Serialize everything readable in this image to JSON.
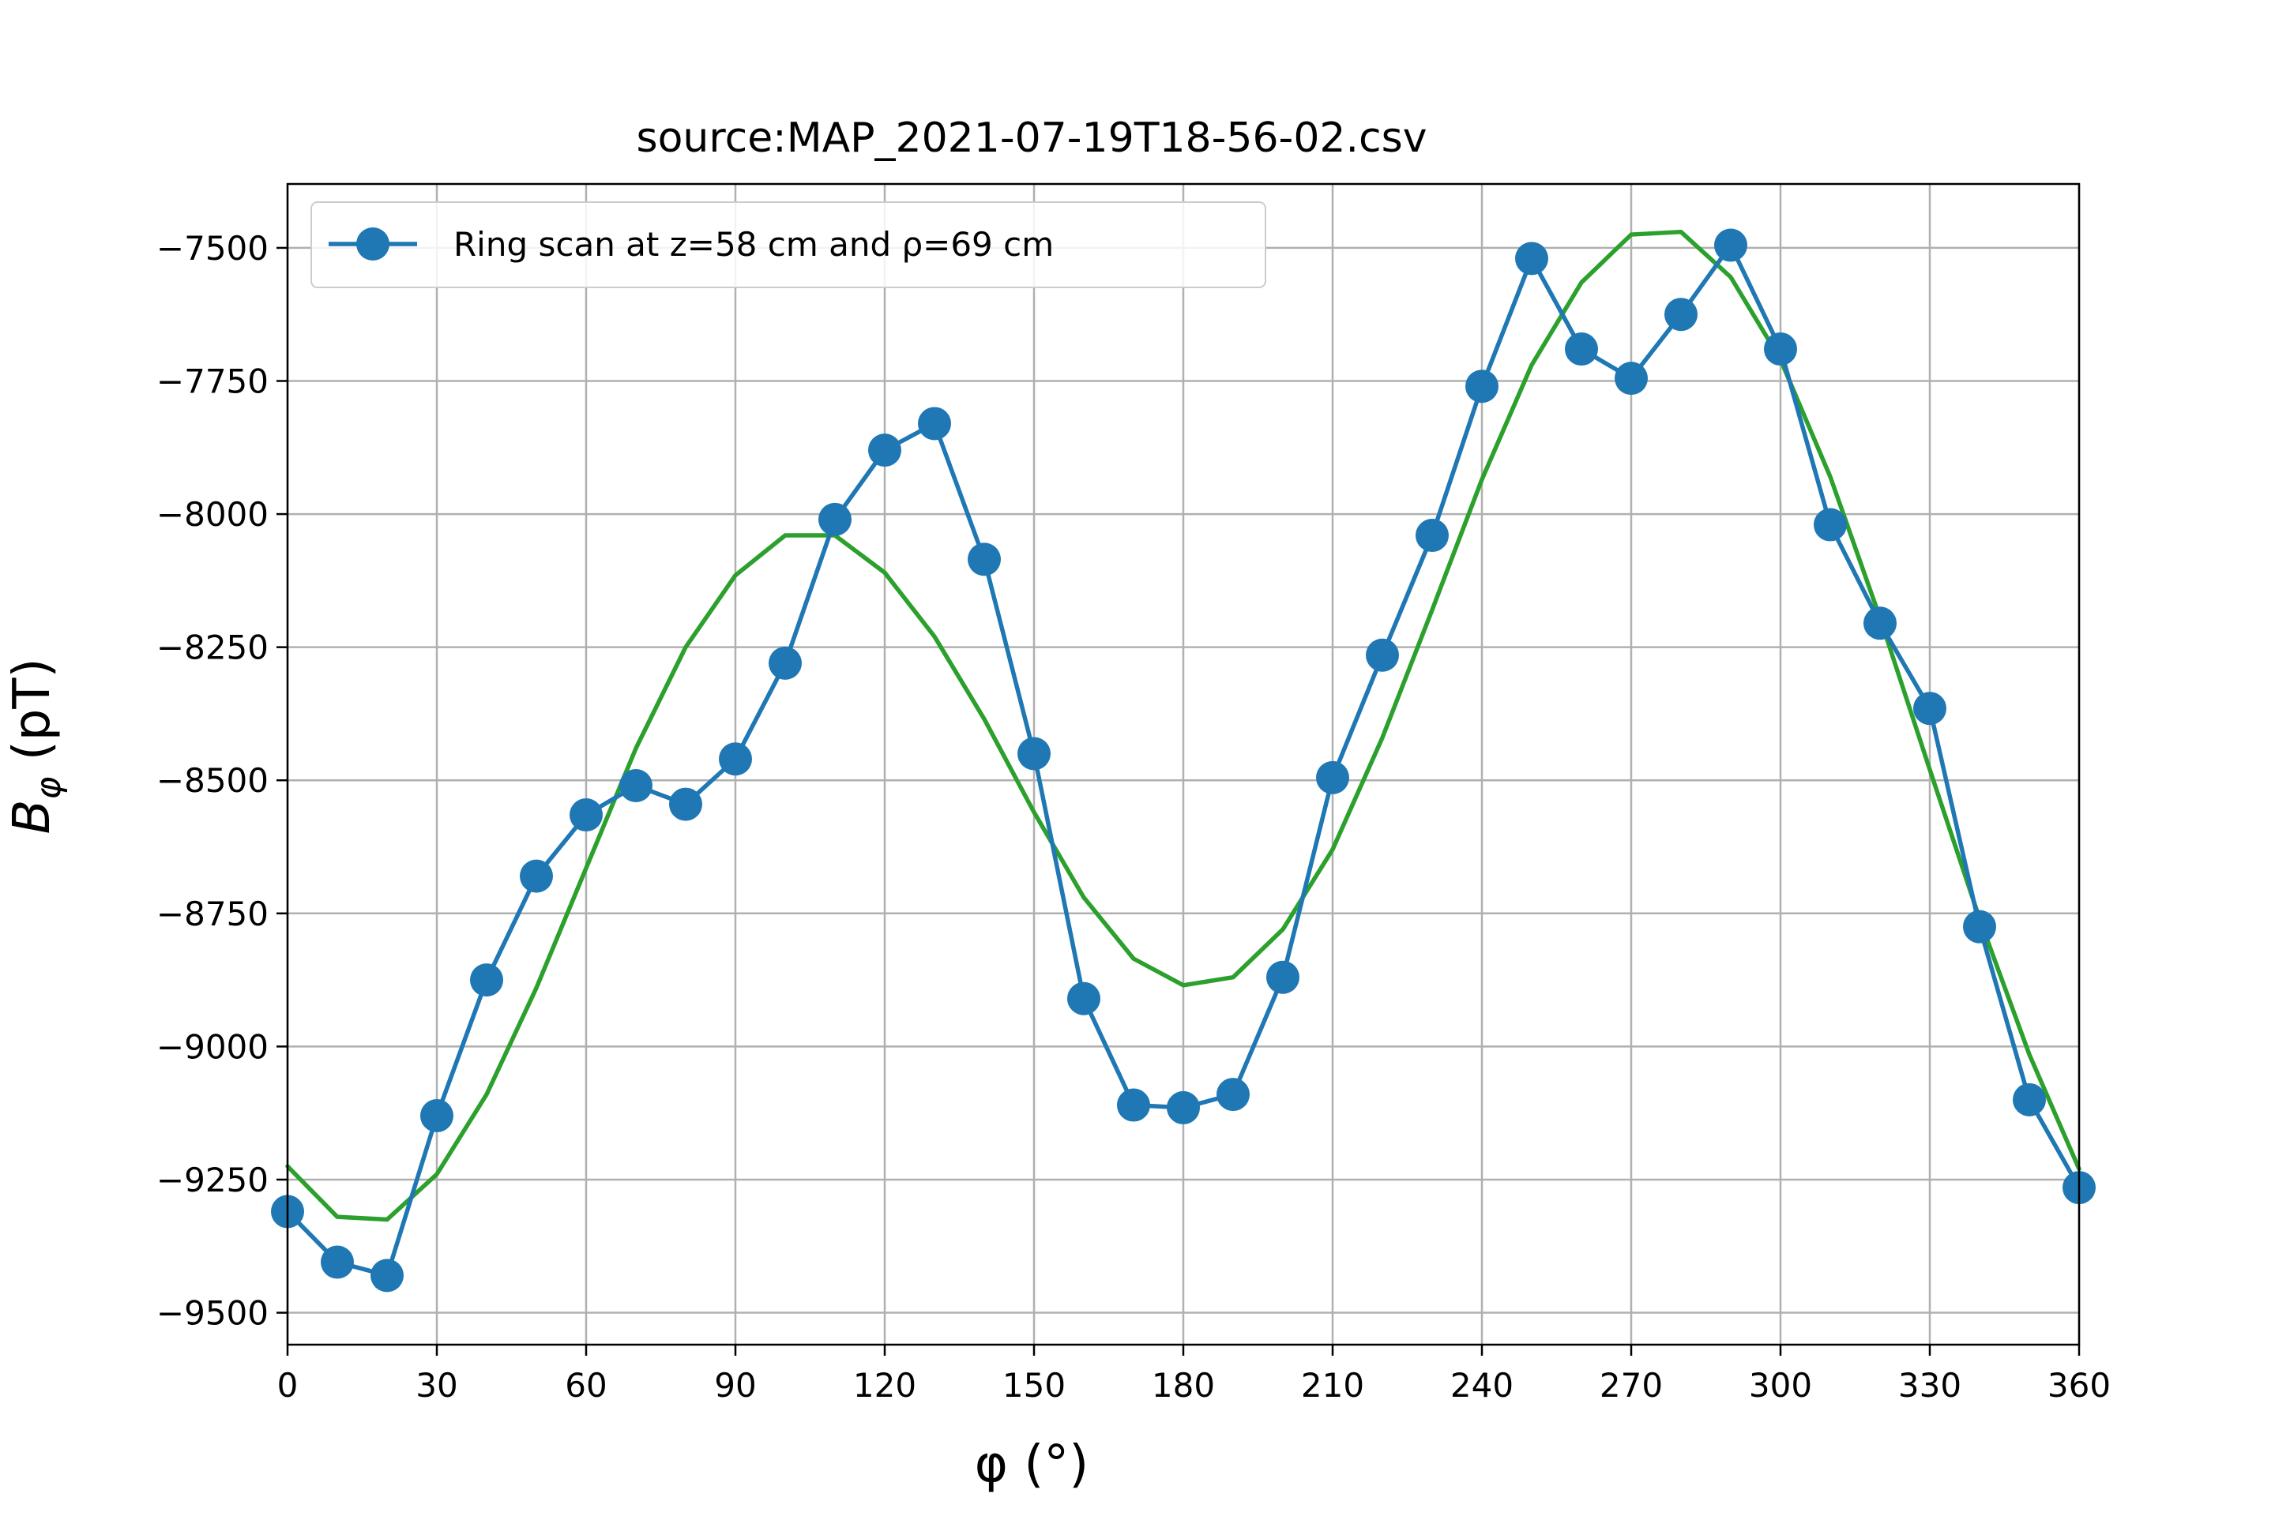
{
  "chart_data": {
    "type": "line",
    "title": "source:MAP_2021-07-19T18-56-02.csv",
    "xlabel": "φ (°)",
    "ylabel_main": "B",
    "ylabel_sub": "φ",
    "ylabel_unit": " (pT)",
    "xlim": [
      0,
      360
    ],
    "ylim": [
      -9560,
      -7380
    ],
    "x_ticks": [
      0,
      30,
      60,
      90,
      120,
      150,
      180,
      210,
      240,
      270,
      300,
      330,
      360
    ],
    "x_tick_labels": [
      "0",
      "30",
      "60",
      "90",
      "120",
      "150",
      "180",
      "210",
      "240",
      "270",
      "300",
      "330",
      "360"
    ],
    "y_ticks": [
      -7500,
      -7750,
      -8000,
      -8250,
      -8500,
      -8750,
      -9000,
      -9250,
      -9500
    ],
    "y_tick_labels": [
      "−7500",
      "−7750",
      "−8000",
      "−8250",
      "−8500",
      "−8750",
      "−9000",
      "−9250",
      "−9500"
    ],
    "grid": true,
    "legend_position": "top-left",
    "series": [
      {
        "name": "Ring scan at z=58 cm and ρ=69 cm",
        "color": "#1f77b4",
        "marker": "circle",
        "x": [
          0,
          10,
          20,
          30,
          40,
          50,
          60,
          70,
          80,
          90,
          100,
          110,
          120,
          130,
          140,
          150,
          160,
          170,
          180,
          190,
          200,
          210,
          220,
          230,
          240,
          250,
          260,
          270,
          280,
          290,
          300,
          310,
          320,
          330,
          340,
          350,
          360
        ],
        "y": [
          -9310,
          -9405,
          -9430,
          -9130,
          -8875,
          -8680,
          -8565,
          -8510,
          -8545,
          -8460,
          -8280,
          -8010,
          -7880,
          -7830,
          -8085,
          -8450,
          -8910,
          -9110,
          -9115,
          -9090,
          -8870,
          -8495,
          -8265,
          -8040,
          -7760,
          -7520,
          -7690,
          -7745,
          -7625,
          -7495,
          -7690,
          -8020,
          -8205,
          -8365,
          -8775,
          -9100,
          -9265
        ]
      },
      {
        "name": "",
        "color": "#2ca02c",
        "marker": "none",
        "x": [
          0,
          10,
          20,
          30,
          40,
          50,
          60,
          70,
          80,
          90,
          100,
          110,
          120,
          130,
          140,
          150,
          160,
          170,
          180,
          190,
          200,
          210,
          220,
          230,
          240,
          250,
          260,
          270,
          280,
          290,
          300,
          310,
          320,
          330,
          340,
          350,
          360
        ],
        "y": [
          -9225,
          -9320,
          -9325,
          -9240,
          -9090,
          -8890,
          -8665,
          -8440,
          -8250,
          -8115,
          -8040,
          -8040,
          -8110,
          -8230,
          -8385,
          -8560,
          -8720,
          -8835,
          -8885,
          -8870,
          -8780,
          -8630,
          -8420,
          -8180,
          -7935,
          -7720,
          -7565,
          -7475,
          -7470,
          -7555,
          -7710,
          -7930,
          -8195,
          -8480,
          -8760,
          -9015,
          -9230
        ]
      }
    ]
  }
}
